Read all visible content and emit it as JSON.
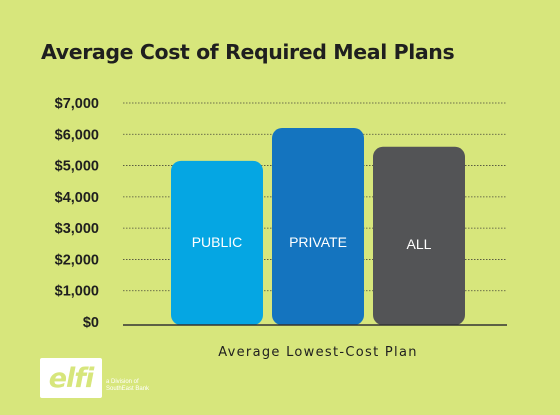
{
  "chart_data": {
    "type": "bar",
    "title": "Average Cost of Required Meal Plans",
    "xlabel": "Average Lowest-Cost Plan",
    "ylabel": "",
    "categories": [
      "PUBLIC",
      "PRIVATE",
      "ALL"
    ],
    "values": [
      5150,
      6200,
      5600
    ],
    "ylim": [
      0,
      7000
    ],
    "yticks": [
      "$0",
      "$1,000",
      "$2,000",
      "$3,000",
      "$4,000",
      "$5,000",
      "$6,000",
      "$7,000"
    ],
    "colors": [
      "#05a6e3",
      "#1474bf",
      "#535456"
    ],
    "grid": true,
    "legend": "none"
  },
  "brand": {
    "logo_text": "elfi",
    "tagline_line1": "a Division of",
    "tagline_line2": "SouthEast Bank"
  }
}
